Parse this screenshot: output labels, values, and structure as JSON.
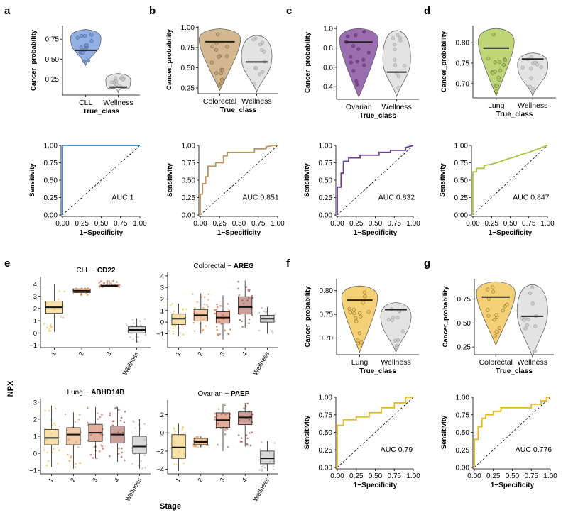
{
  "colors": {
    "cll": "#6f95dd",
    "colorectal": "#c4a06a",
    "ovarian": "#7a3d94",
    "lung": "#a8c84a",
    "lung_f": "#f0c04a",
    "colorectal_g": "#f0c04a",
    "wellness": "#d9d9d9",
    "roc_a": "#3d7fc4",
    "roc_b": "#b9975b",
    "roc_c": "#6a3d8f",
    "roc_d": "#a6c640",
    "roc_fg": "#e8b820"
  },
  "panel_labels": [
    "a",
    "b",
    "c",
    "d",
    "e",
    "f",
    "g"
  ],
  "chart_data": [
    {
      "id": "a_violin",
      "type": "violin",
      "ylabel": "Cancer_probability",
      "xlabel": "True_class",
      "categories": [
        "CLL",
        "Wellness"
      ],
      "medians": [
        0.61,
        0.15
      ],
      "ylim": [
        0.05,
        0.92
      ],
      "yticks": [
        0.25,
        0.5,
        0.75
      ],
      "yticklabels": [
        "0.25",
        "0.50",
        "0.75"
      ],
      "ranges": [
        [
          0.42,
          0.87
        ],
        [
          0.08,
          0.32
        ]
      ]
    },
    {
      "id": "b_violin",
      "type": "violin",
      "ylabel": "Cancer_probability",
      "xlabel": "True_class",
      "categories": [
        "Colorectal",
        "Wellness"
      ],
      "medians": [
        0.82,
        0.57
      ],
      "ylim": [
        0.18,
        1.02
      ],
      "yticks": [
        0.25,
        0.5,
        0.75,
        1.0
      ],
      "yticklabels": [
        "0.25",
        "0.50",
        "0.75",
        "1.00"
      ],
      "ranges": [
        [
          0.22,
          0.98
        ],
        [
          0.2,
          0.9
        ]
      ]
    },
    {
      "id": "c_violin",
      "type": "violin",
      "ylabel": "Cancer_probability",
      "xlabel": "True_class",
      "categories": [
        "Ovarian",
        "Wellness"
      ],
      "medians": [
        0.86,
        0.55
      ],
      "ylim": [
        0.27,
        1.03
      ],
      "yticks": [
        0.4,
        0.6,
        0.8,
        1.0
      ],
      "yticklabels": [
        "0.4",
        "0.6",
        "0.8",
        "1.0"
      ],
      "ranges": [
        [
          0.29,
          1.0
        ],
        [
          0.3,
          0.98
        ]
      ]
    },
    {
      "id": "d_violin",
      "type": "violin",
      "ylabel": "Cancer_probability",
      "xlabel": "True_class",
      "categories": [
        "Lung",
        "Wellness"
      ],
      "medians": [
        0.787,
        0.76
      ],
      "ylim": [
        0.665,
        0.842
      ],
      "yticks": [
        0.7,
        0.75,
        0.8
      ],
      "yticklabels": [
        "0.70",
        "0.75",
        "0.80"
      ],
      "ranges": [
        [
          0.67,
          0.835
        ],
        [
          0.67,
          0.775
        ]
      ]
    },
    {
      "id": "f_violin",
      "type": "violin",
      "ylabel": "Cancer_probability",
      "xlabel": "True_class",
      "categories": [
        "Lung",
        "Wellness"
      ],
      "medians": [
        0.78,
        0.76
      ],
      "ylim": [
        0.665,
        0.825
      ],
      "yticks": [
        0.7,
        0.75,
        0.8
      ],
      "yticklabels": [
        "0.70",
        "0.75",
        "0.80"
      ],
      "ranges": [
        [
          0.67,
          0.81
        ],
        [
          0.67,
          0.775
        ]
      ]
    },
    {
      "id": "g_violin",
      "type": "violin",
      "ylabel": "Cancer_probability",
      "xlabel": "True_class",
      "categories": [
        "Colorectal",
        "Wellness"
      ],
      "medians": [
        0.77,
        0.57
      ],
      "ylim": [
        0.17,
        0.96
      ],
      "yticks": [
        0.25,
        0.5,
        0.75
      ],
      "yticklabels": [
        "0.25",
        "0.50",
        "0.75"
      ],
      "ranges": [
        [
          0.27,
          0.93
        ],
        [
          0.15,
          0.9
        ]
      ]
    },
    {
      "id": "a_roc",
      "type": "line",
      "xlabel": "1−Specificity",
      "ylabel": "Sensitivity",
      "auc_label": "AUC 1",
      "xticks": [
        "0.00",
        "0.25",
        "0.50",
        "0.75",
        "1.00"
      ],
      "yticks": [
        "0.00",
        "0.25",
        "0.50",
        "0.75",
        "1.00"
      ],
      "fpr": [
        0,
        0,
        1
      ],
      "tpr": [
        0,
        1,
        1
      ]
    },
    {
      "id": "b_roc",
      "type": "line",
      "xlabel": "1−Specificity",
      "ylabel": "Sensitivity",
      "auc_label": "AUC 0.851",
      "xticks": [
        "0.00",
        "0.25",
        "0.50",
        "0.75",
        "1.00"
      ],
      "yticks": [
        "0.00",
        "0.25",
        "0.50",
        "0.75",
        "1.00"
      ],
      "fpr": [
        0,
        0,
        0.03,
        0.03,
        0.07,
        0.07,
        0.1,
        0.1,
        0.2,
        0.2,
        0.3,
        0.3,
        0.35,
        0.35,
        0.7,
        0.7,
        0.85,
        0.85,
        0.95,
        1
      ],
      "tpr": [
        0,
        0.3,
        0.3,
        0.45,
        0.45,
        0.55,
        0.55,
        0.7,
        0.7,
        0.75,
        0.75,
        0.85,
        0.85,
        0.9,
        0.9,
        0.95,
        0.95,
        0.98,
        1,
        1
      ]
    },
    {
      "id": "c_roc",
      "type": "line",
      "xlabel": "1−Specificity",
      "ylabel": "Sensitivity",
      "auc_label": "AUC 0.832",
      "xticks": [
        "0.00",
        "0.25",
        "0.50",
        "0.75",
        "1.00"
      ],
      "yticks": [
        "0.00",
        "0.25",
        "0.50",
        "0.75",
        "1.00"
      ],
      "fpr": [
        0,
        0,
        0.05,
        0.05,
        0.08,
        0.08,
        0.15,
        0.15,
        0.3,
        0.3,
        0.55,
        0.55,
        0.7,
        0.7,
        0.9,
        0.9,
        1
      ],
      "tpr": [
        0,
        0.4,
        0.4,
        0.6,
        0.6,
        0.77,
        0.77,
        0.82,
        0.82,
        0.86,
        0.86,
        0.9,
        0.9,
        0.93,
        0.93,
        0.97,
        1
      ]
    },
    {
      "id": "d_roc",
      "type": "line",
      "xlabel": "1−Specificity",
      "ylabel": "Sensitivity",
      "auc_label": "AUC 0.847",
      "xticks": [
        "0.00",
        "0.25",
        "0.50",
        "0.75",
        "1.00"
      ],
      "yticks": [
        "0.00",
        "0.25",
        "0.50",
        "0.75",
        "1.00"
      ],
      "fpr": [
        0,
        0,
        0.05,
        0.05,
        0.15,
        0.15,
        0.25,
        0.35,
        0.45,
        0.55,
        0.65,
        0.75,
        0.85,
        0.95,
        1
      ],
      "tpr": [
        0,
        0.62,
        0.62,
        0.67,
        0.67,
        0.71,
        0.73,
        0.76,
        0.8,
        0.83,
        0.87,
        0.9,
        0.94,
        0.98,
        1
      ]
    },
    {
      "id": "f_roc",
      "type": "line",
      "xlabel": "1−Specificity",
      "ylabel": "Sensitivity",
      "auc_label": "AUC 0.79",
      "xticks": [
        "0.00",
        "0.25",
        "0.50",
        "0.75",
        "1.00"
      ],
      "yticks": [
        "0.00",
        "0.25",
        "0.50",
        "0.75",
        "1.00"
      ],
      "fpr": [
        0,
        0,
        0.08,
        0.08,
        0.25,
        0.25,
        0.42,
        0.42,
        0.58,
        0.58,
        0.75,
        0.75,
        0.9,
        0.9,
        1
      ],
      "tpr": [
        0,
        0.6,
        0.6,
        0.68,
        0.68,
        0.72,
        0.72,
        0.78,
        0.78,
        0.85,
        0.85,
        0.92,
        0.92,
        1,
        1
      ]
    },
    {
      "id": "g_roc",
      "type": "line",
      "xlabel": "1−Specificity",
      "ylabel": "Sensitivity",
      "auc_label": "AUC 0.776",
      "xticks": [
        "0.00",
        "0.25",
        "0.50",
        "0.75",
        "1.00"
      ],
      "yticks": [
        "0.00",
        "0.25",
        "0.50",
        "0.75",
        "1.00"
      ],
      "fpr": [
        0,
        0,
        0.05,
        0.05,
        0.1,
        0.1,
        0.15,
        0.15,
        0.25,
        0.25,
        0.35,
        0.35,
        0.75,
        0.75,
        0.88,
        0.88,
        0.95,
        0.95,
        1
      ],
      "tpr": [
        0,
        0.4,
        0.4,
        0.58,
        0.58,
        0.7,
        0.7,
        0.75,
        0.75,
        0.8,
        0.8,
        0.85,
        0.85,
        0.9,
        0.9,
        0.95,
        0.95,
        1,
        1
      ]
    },
    {
      "id": "e_cll",
      "type": "box",
      "title_prefix": "CLL − ",
      "title_bold": "CD22",
      "categories": [
        "1",
        "2",
        "3",
        "Wellness"
      ],
      "ylim": [
        -1.2,
        4.6
      ],
      "yticks": [
        -1,
        0,
        1,
        2,
        3,
        4
      ],
      "yticklabels": [
        "−1",
        "0",
        "1",
        "2",
        "3",
        "4"
      ],
      "boxes": [
        {
          "q1": 1.6,
          "med": 2.1,
          "q3": 2.6,
          "lo": 0.1,
          "hi": 4.0,
          "color": "#f0c860"
        },
        {
          "q1": 3.3,
          "med": 3.45,
          "q3": 3.6,
          "lo": 3.1,
          "hi": 3.7,
          "color": "#e8a060"
        },
        {
          "q1": 3.8,
          "med": 3.85,
          "q3": 3.9,
          "lo": 3.75,
          "hi": 4.3,
          "color": "#c86b4a"
        },
        {
          "q1": 0.0,
          "med": 0.25,
          "q3": 0.5,
          "lo": -0.8,
          "hi": 1.2,
          "color": "#bbbbbb"
        }
      ]
    },
    {
      "id": "e_colorectal",
      "type": "box",
      "title_prefix": "Colorectal − ",
      "title_bold": "AREG",
      "categories": [
        "1",
        "2",
        "3",
        "4",
        "Wellness"
      ],
      "ylim": [
        -2.2,
        4.3
      ],
      "yticks": [
        -1,
        0,
        1,
        2,
        3,
        4
      ],
      "yticklabels": [
        "−1",
        "0",
        "1",
        "2",
        "3",
        "4"
      ],
      "boxes": [
        {
          "q1": -0.2,
          "med": 0.3,
          "q3": 0.7,
          "lo": -1.2,
          "hi": 1.6,
          "color": "#f0c860"
        },
        {
          "q1": 0.1,
          "med": 0.6,
          "q3": 1.1,
          "lo": -1.0,
          "hi": 2.5,
          "color": "#e8a060"
        },
        {
          "q1": -0.1,
          "med": 0.4,
          "q3": 0.9,
          "lo": -1.5,
          "hi": 2.3,
          "color": "#c86b4a"
        },
        {
          "q1": 0.7,
          "med": 1.3,
          "q3": 2.2,
          "lo": -0.5,
          "hi": 3.6,
          "color": "#a0504a"
        },
        {
          "q1": 0.0,
          "med": 0.3,
          "q3": 0.6,
          "lo": -1.0,
          "hi": 1.3,
          "color": "#bbbbbb"
        }
      ]
    },
    {
      "id": "e_lung",
      "type": "box",
      "title_prefix": "Lung − ",
      "title_bold": "ABHD14B",
      "categories": [
        "1",
        "2",
        "3",
        "4",
        "Wellness"
      ],
      "ylim": [
        -1.2,
        3.2
      ],
      "yticks": [
        -1,
        0,
        1,
        2,
        3
      ],
      "yticklabels": [
        "−1",
        "0",
        "1",
        "2",
        "3"
      ],
      "boxes": [
        {
          "q1": 0.5,
          "med": 0.9,
          "q3": 1.4,
          "lo": -0.8,
          "hi": 2.8,
          "color": "#f0c860"
        },
        {
          "q1": 0.5,
          "med": 1.1,
          "q3": 1.5,
          "lo": -0.9,
          "hi": 2.4,
          "color": "#e8a060"
        },
        {
          "q1": 0.7,
          "med": 1.2,
          "q3": 1.7,
          "lo": -0.3,
          "hi": 2.7,
          "color": "#c86b4a"
        },
        {
          "q1": 0.6,
          "med": 1.1,
          "q3": 1.6,
          "lo": -0.5,
          "hi": 2.7,
          "color": "#a0504a"
        },
        {
          "q1": 0.0,
          "med": 0.4,
          "q3": 1.0,
          "lo": -0.9,
          "hi": 2.0,
          "color": "#bbbbbb"
        }
      ]
    },
    {
      "id": "e_ovarian",
      "type": "box",
      "title_prefix": "Ovarian − ",
      "title_bold": "PAEP",
      "categories": [
        "1",
        "2",
        "3",
        "4",
        "Wellness"
      ],
      "ylim": [
        -4.5,
        3.6
      ],
      "yticks": [
        -4,
        -2,
        0,
        2
      ],
      "yticklabels": [
        "−4",
        "−2",
        "0",
        "2"
      ],
      "boxes": [
        {
          "q1": -2.8,
          "med": -1.6,
          "q3": -0.2,
          "lo": -4.2,
          "hi": 1.0,
          "color": "#f0c860"
        },
        {
          "q1": -1.3,
          "med": -1.0,
          "q3": -0.6,
          "lo": -1.6,
          "hi": -0.4,
          "color": "#e8a060"
        },
        {
          "q1": 0.6,
          "med": 1.4,
          "q3": 2.2,
          "lo": -2.0,
          "hi": 3.2,
          "color": "#c86b4a"
        },
        {
          "q1": 0.9,
          "med": 1.7,
          "q3": 2.3,
          "lo": -1.5,
          "hi": 3.3,
          "color": "#a0504a"
        },
        {
          "q1": -3.4,
          "med": -2.8,
          "q3": -2.0,
          "lo": -4.2,
          "hi": -0.9,
          "color": "#bbbbbb"
        }
      ]
    }
  ],
  "e_shared": {
    "ylabel": "NPX",
    "xlabel": "Stage"
  }
}
